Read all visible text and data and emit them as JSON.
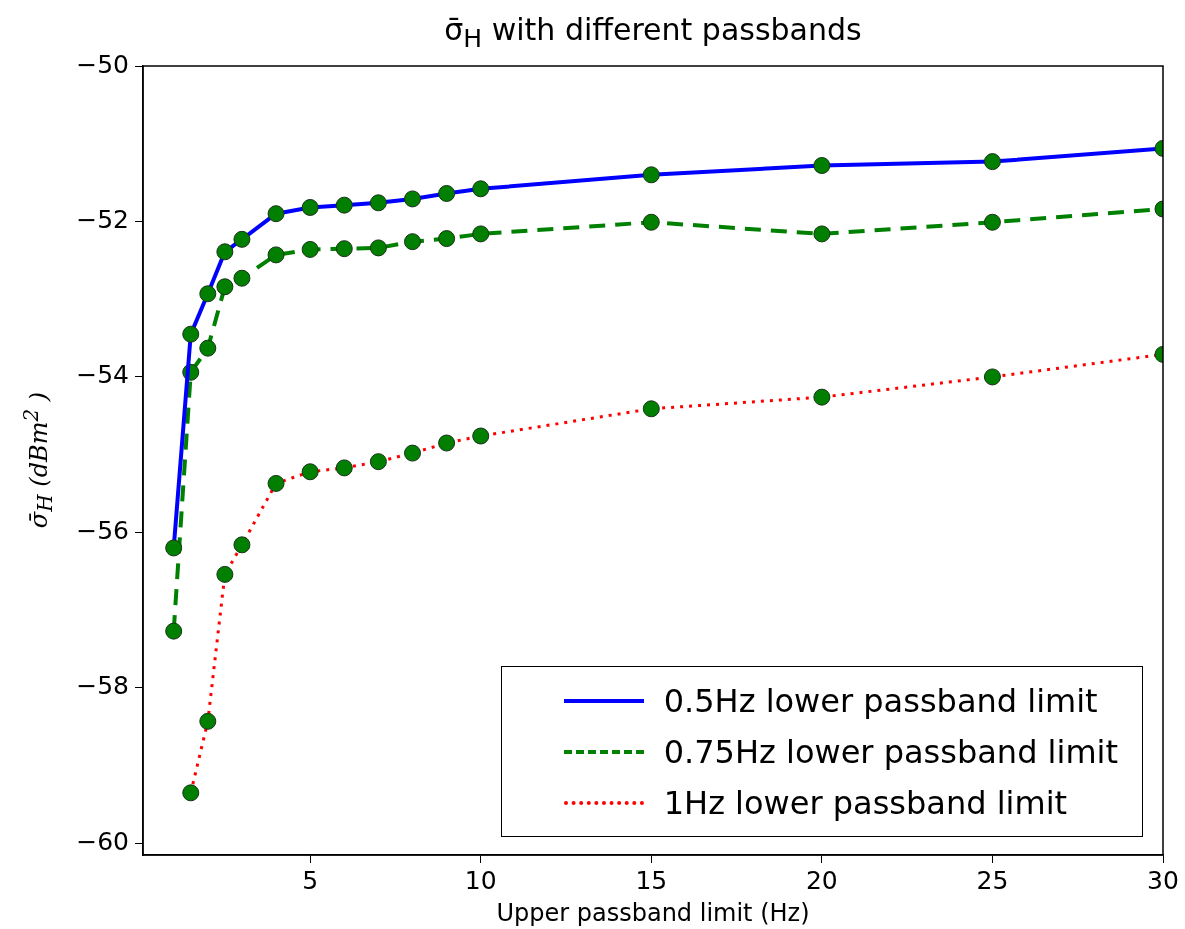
{
  "chart_data": {
    "type": "line",
    "title": "σ̄$_{H}$  with different passbands",
    "xlabel": "Upper passband limit (Hz)",
    "ylabel": "σ̄$_{H}$  (dBm$^{2}$ )",
    "x": [
      1,
      1.5,
      2,
      2.5,
      3,
      4,
      5,
      6,
      7,
      8,
      9,
      10,
      15,
      20,
      25,
      30
    ],
    "xlim": [
      0.1,
      30
    ],
    "xticks": [
      5,
      10,
      15,
      20,
      25,
      30
    ],
    "ylim": [
      -60.15,
      -50
    ],
    "yticks": [
      -60,
      -58,
      -56,
      -54,
      -52,
      -50
    ],
    "legend": "bottom right",
    "marker": "circle",
    "series": [
      {
        "name": "0.5Hz lower passband limit",
        "color": "#0000ff",
        "line_style": "solid",
        "colors": [
          "#007f00",
          "#007f00",
          "#007f00",
          "#007f00",
          "#007f00",
          "#007f00",
          "#007f00",
          "#007f00",
          "#007f00",
          "#007f00",
          "#007f00",
          "#007f00",
          "#007f00",
          "#007f00",
          "#007f00",
          "#007f00"
        ],
        "values": [
          -56.2,
          -53.45,
          -52.93,
          -52.39,
          -52.23,
          -51.9,
          -51.82,
          -51.79,
          -51.76,
          -51.71,
          -51.64,
          -51.58,
          -51.4,
          -51.28,
          -51.23,
          -51.06
        ]
      },
      {
        "name": "0.75Hz lower passband limit",
        "color": "#008000",
        "line_style": "dashed",
        "colors": [
          "#007f00",
          "#007f00",
          "#007f00",
          "#007f00",
          "#007f00",
          "#007f00",
          "#007f00",
          "#007f00",
          "#007f00",
          "#007f00",
          "#007f00",
          "#007f00",
          "#007f00",
          "#007f00",
          "#007f00",
          "#007f00"
        ],
        "values": [
          -57.27,
          -53.94,
          -53.63,
          -52.84,
          -52.73,
          -52.43,
          -52.36,
          -52.35,
          -52.34,
          -52.26,
          -52.22,
          -52.16,
          -52.01,
          -52.16,
          -52.01,
          -51.84
        ]
      },
      {
        "name": "1Hz lower passband limit",
        "color": "#ff0000",
        "line_style": "dotted",
        "colors": [
          "#007f00",
          "#007f00",
          "#007f00",
          "#007f00",
          "#007f00",
          "#007f00",
          "#007f00",
          "#007f00",
          "#007f00",
          "#007f00",
          "#007f00",
          "#007f00",
          "#007f00",
          "#007f00",
          "#007f00",
          "#007f00"
        ],
        "values": [
          null,
          -59.35,
          -58.43,
          -56.54,
          -56.16,
          -55.37,
          -55.22,
          -55.17,
          -55.09,
          -54.98,
          -54.85,
          -54.76,
          -54.41,
          -54.26,
          -54.0,
          -53.71
        ]
      }
    ]
  }
}
